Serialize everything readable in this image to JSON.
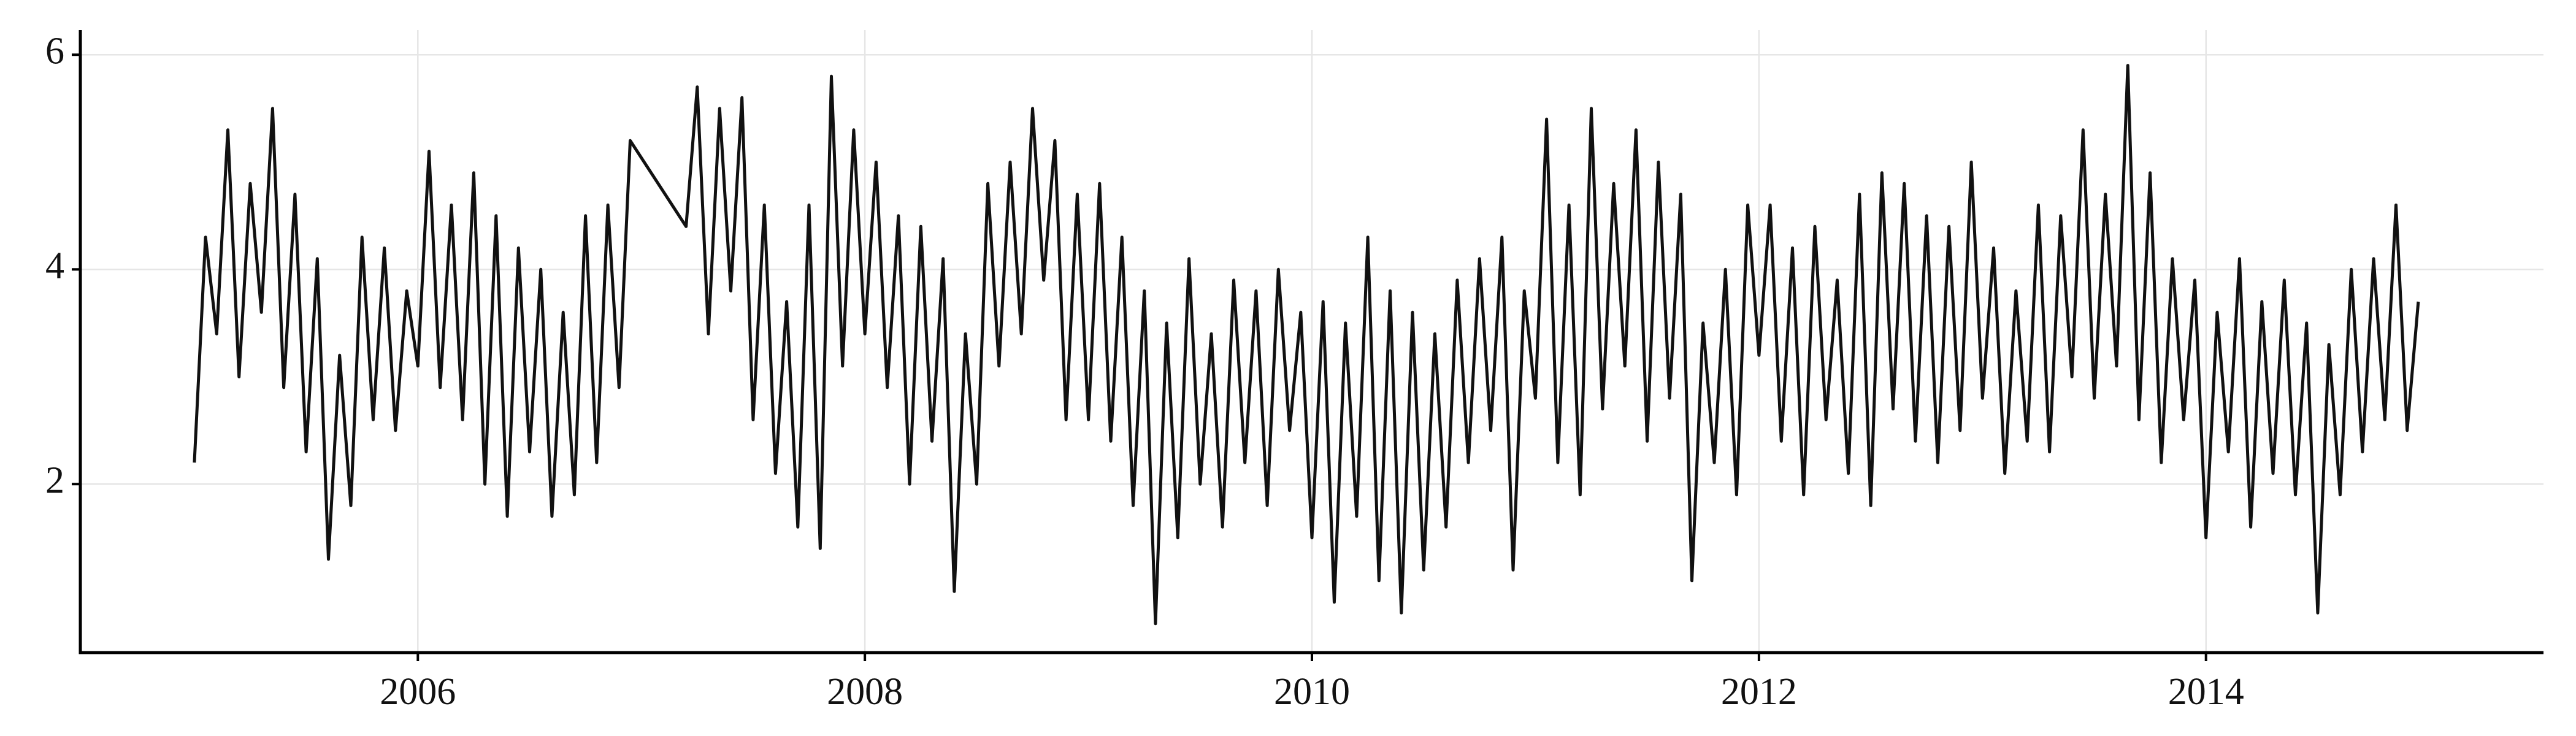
{
  "chart_data": {
    "type": "line",
    "x": [
      2005.0,
      2005.05,
      2005.1,
      2005.15,
      2005.2,
      2005.25,
      2005.3,
      2005.35,
      2005.4,
      2005.45,
      2005.5,
      2005.55,
      2005.6,
      2005.65,
      2005.7,
      2005.75,
      2005.8,
      2005.85,
      2005.9,
      2005.95,
      2006.0,
      2006.05,
      2006.1,
      2006.15,
      2006.2,
      2006.25,
      2006.3,
      2006.35,
      2006.4,
      2006.45,
      2006.5,
      2006.55,
      2006.6,
      2006.65,
      2006.7,
      2006.75,
      2006.8,
      2006.85,
      2006.9,
      2006.95,
      2007.2,
      2007.25,
      2007.3,
      2007.35,
      2007.4,
      2007.45,
      2007.5,
      2007.55,
      2007.6,
      2007.65,
      2007.7,
      2007.75,
      2007.8,
      2007.85,
      2007.9,
      2007.95,
      2008.0,
      2008.05,
      2008.1,
      2008.15,
      2008.2,
      2008.25,
      2008.3,
      2008.35,
      2008.4,
      2008.45,
      2008.5,
      2008.55,
      2008.6,
      2008.65,
      2008.7,
      2008.75,
      2008.8,
      2008.85,
      2008.9,
      2008.95,
      2009.0,
      2009.05,
      2009.1,
      2009.15,
      2009.2,
      2009.25,
      2009.3,
      2009.35,
      2009.4,
      2009.45,
      2009.5,
      2009.55,
      2009.6,
      2009.65,
      2009.7,
      2009.75,
      2009.8,
      2009.85,
      2009.9,
      2009.95,
      2010.0,
      2010.05,
      2010.1,
      2010.15,
      2010.2,
      2010.25,
      2010.3,
      2010.35,
      2010.4,
      2010.45,
      2010.5,
      2010.55,
      2010.6,
      2010.65,
      2010.7,
      2010.75,
      2010.8,
      2010.85,
      2010.9,
      2010.95,
      2011.0,
      2011.05,
      2011.1,
      2011.15,
      2011.2,
      2011.25,
      2011.3,
      2011.35,
      2011.4,
      2011.45,
      2011.5,
      2011.55,
      2011.6,
      2011.65,
      2011.7,
      2011.75,
      2011.8,
      2011.85,
      2011.9,
      2011.95,
      2012.0,
      2012.05,
      2012.1,
      2012.15,
      2012.2,
      2012.25,
      2012.3,
      2012.35,
      2012.4,
      2012.45,
      2012.5,
      2012.55,
      2012.6,
      2012.65,
      2012.7,
      2012.75,
      2012.8,
      2012.85,
      2012.9,
      2012.95,
      2013.0,
      2013.05,
      2013.1,
      2013.15,
      2013.2,
      2013.25,
      2013.3,
      2013.35,
      2013.4,
      2013.45,
      2013.5,
      2013.55,
      2013.6,
      2013.65,
      2013.7,
      2013.75,
      2013.8,
      2013.85,
      2013.9,
      2013.95,
      2014.0,
      2014.05,
      2014.1,
      2014.15,
      2014.2,
      2014.25,
      2014.3,
      2014.35,
      2014.4,
      2014.45,
      2014.5,
      2014.55,
      2014.6,
      2014.65,
      2014.7,
      2014.75,
      2014.8,
      2014.85,
      2014.9,
      2014.95
    ],
    "values": [
      2.2,
      4.3,
      3.4,
      5.3,
      3.0,
      4.8,
      3.6,
      5.5,
      2.9,
      4.7,
      2.3,
      4.1,
      1.3,
      3.2,
      1.8,
      4.3,
      2.6,
      4.2,
      2.5,
      3.8,
      3.1,
      5.1,
      2.9,
      4.6,
      2.6,
      4.9,
      2.0,
      4.5,
      1.7,
      4.2,
      2.3,
      4.0,
      1.7,
      3.6,
      1.9,
      4.5,
      2.2,
      4.6,
      2.9,
      5.2,
      4.4,
      5.7,
      3.4,
      5.5,
      3.8,
      5.6,
      2.6,
      4.6,
      2.1,
      3.7,
      1.6,
      4.6,
      1.4,
      5.8,
      3.1,
      5.3,
      3.4,
      5.0,
      2.9,
      4.5,
      2.0,
      4.4,
      2.4,
      4.1,
      1.0,
      3.4,
      2.0,
      4.8,
      3.1,
      5.0,
      3.4,
      5.5,
      3.9,
      5.2,
      2.6,
      4.7,
      2.6,
      4.8,
      2.4,
      4.3,
      1.8,
      3.8,
      0.7,
      3.5,
      1.5,
      4.1,
      2.0,
      3.4,
      1.6,
      3.9,
      2.2,
      3.8,
      1.8,
      4.0,
      2.5,
      3.6,
      1.5,
      3.7,
      0.9,
      3.5,
      1.7,
      4.3,
      1.1,
      3.8,
      0.8,
      3.6,
      1.2,
      3.4,
      1.6,
      3.9,
      2.2,
      4.1,
      2.5,
      4.3,
      1.2,
      3.8,
      2.8,
      5.4,
      2.2,
      4.6,
      1.9,
      5.5,
      2.7,
      4.8,
      3.1,
      5.3,
      2.4,
      5.0,
      2.8,
      4.7,
      1.1,
      3.5,
      2.2,
      4.0,
      1.9,
      4.6,
      3.2,
      4.6,
      2.4,
      4.2,
      1.9,
      4.4,
      2.6,
      3.9,
      2.1,
      4.7,
      1.8,
      4.9,
      2.7,
      4.8,
      2.4,
      4.5,
      2.2,
      4.4,
      2.5,
      5.0,
      2.8,
      4.2,
      2.1,
      3.8,
      2.4,
      4.6,
      2.3,
      4.5,
      3.0,
      5.3,
      2.8,
      4.7,
      3.1,
      5.9,
      2.6,
      4.9,
      2.2,
      4.1,
      2.6,
      3.9,
      1.5,
      3.6,
      2.3,
      4.1,
      1.6,
      3.7,
      2.1,
      3.9,
      1.9,
      3.5,
      0.8,
      3.3,
      1.9,
      4.0,
      2.3,
      4.1,
      2.6,
      4.6,
      2.5,
      3.7
    ],
    "color": "#111111",
    "xlim": [
      2004.49,
      2015.51
    ],
    "xticks": [
      2006,
      2008,
      2010,
      2012,
      2014
    ],
    "ylim": [
      0.43,
      6.23
    ],
    "yticks": [
      2,
      4,
      6
    ],
    "grid": true
  }
}
